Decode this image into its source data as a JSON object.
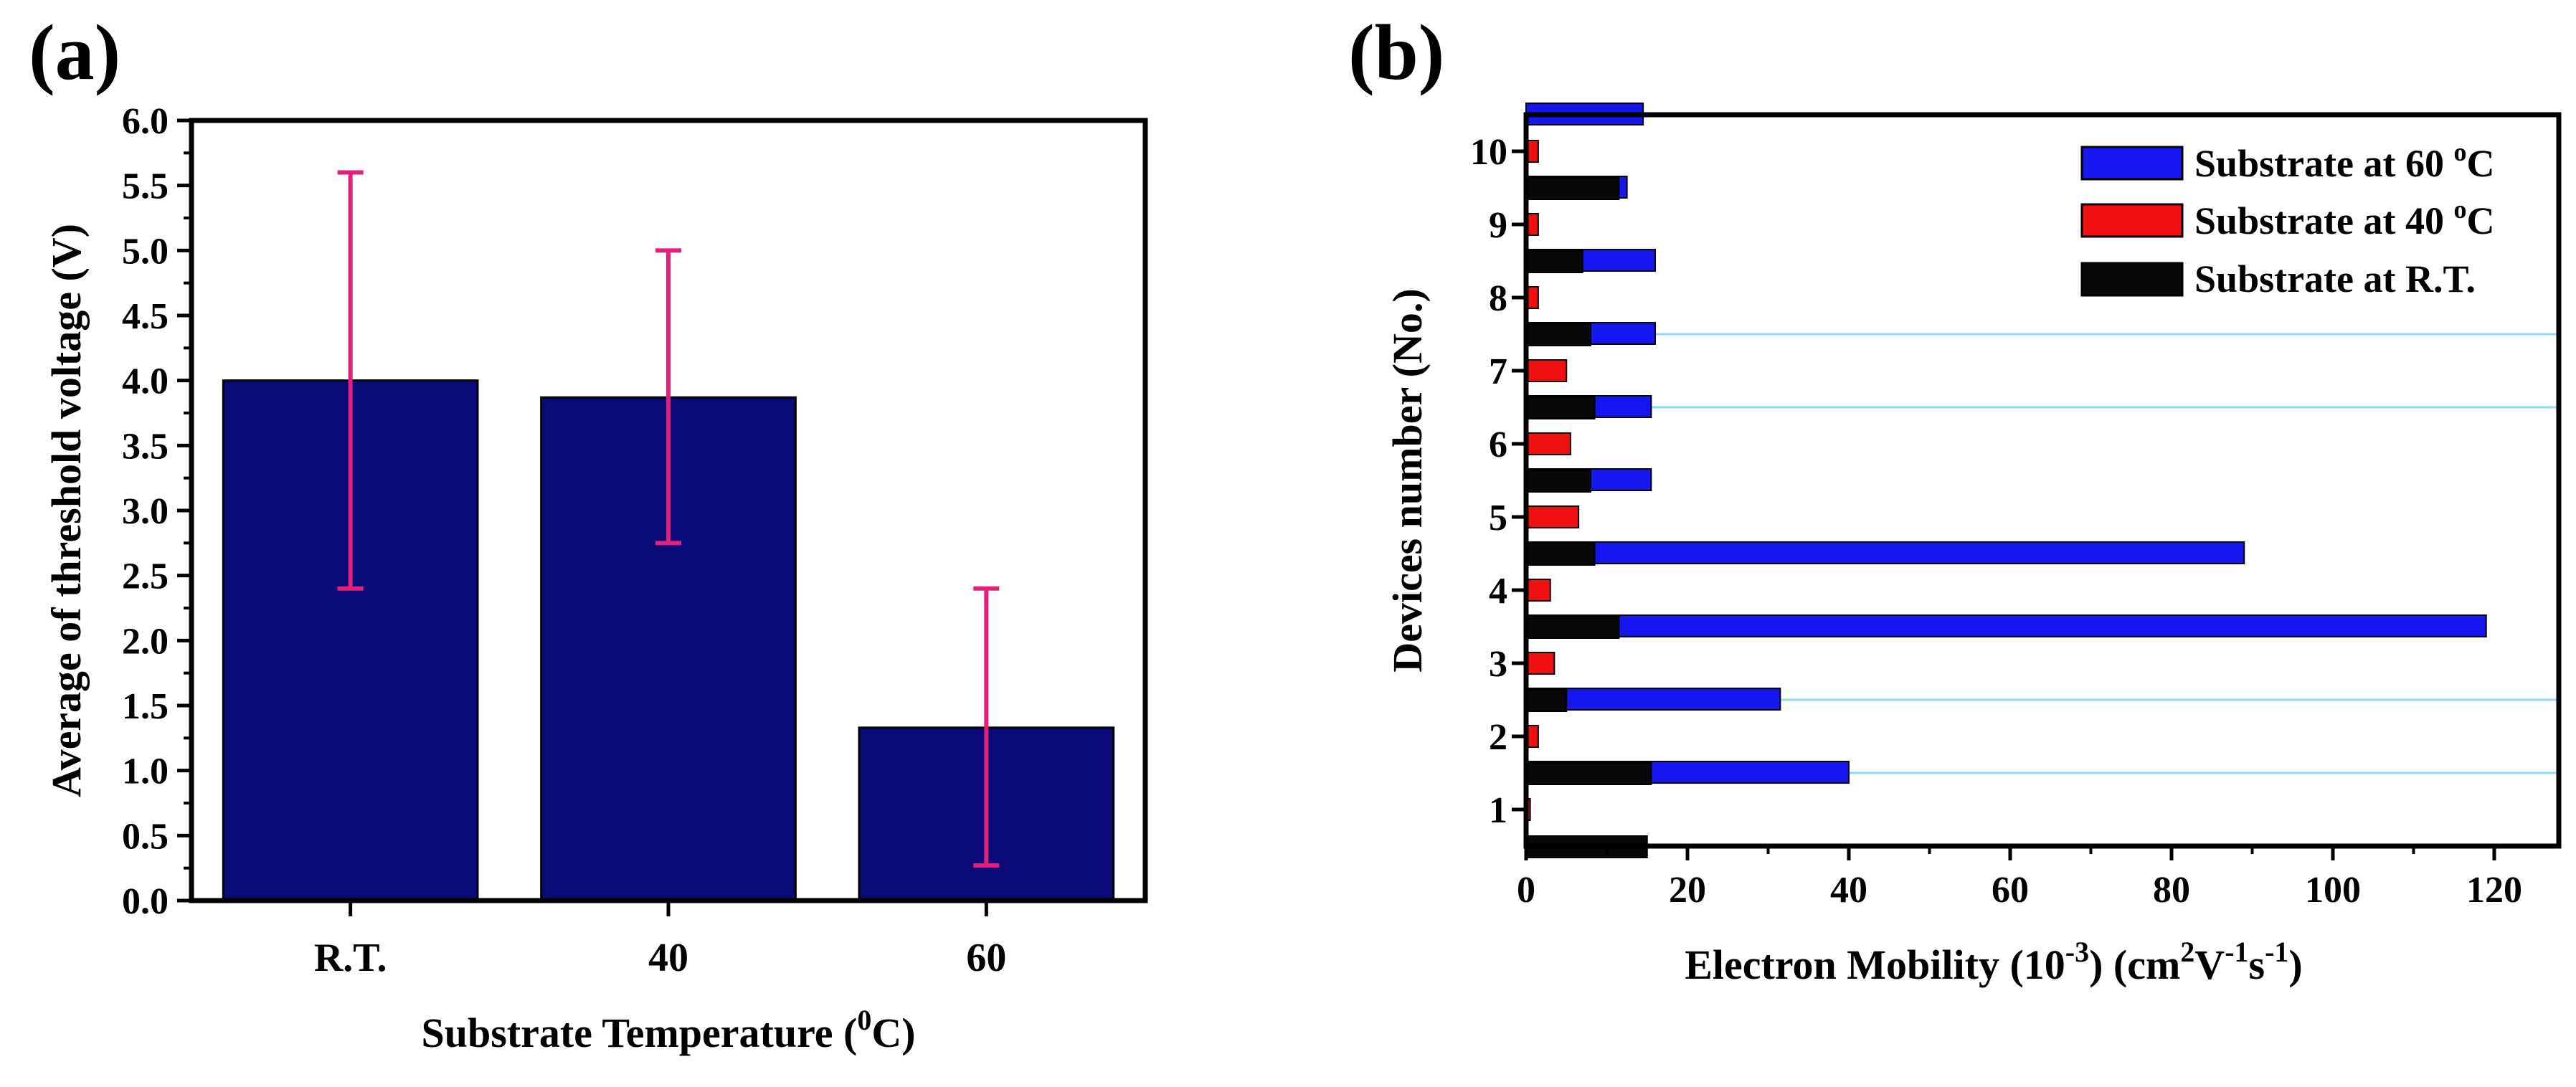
{
  "panels": {
    "a_label": "(a)",
    "b_label": "(b)"
  },
  "colors": {
    "bar_navy": "#0a0a78",
    "error_magenta": "#e0207a",
    "series_blue": "#1616f0",
    "series_red": "#f01010",
    "series_black": "#080808",
    "ref_line": "#8fdcec"
  },
  "chart_data": [
    {
      "id": "a",
      "type": "bar",
      "categories": [
        "R.T.",
        "40",
        "60"
      ],
      "values": [
        4.0,
        3.87,
        1.33
      ],
      "error_low": [
        2.4,
        2.75,
        0.27
      ],
      "error_high": [
        5.6,
        5.0,
        2.4
      ],
      "ylim": [
        0.0,
        6.0
      ],
      "yticks": [
        "0.0",
        "0.5",
        "1.0",
        "1.5",
        "2.0",
        "2.5",
        "3.0",
        "3.5",
        "4.0",
        "4.5",
        "5.0",
        "5.5",
        "6.0"
      ],
      "ylabel": "Average of threshold voltage (V)",
      "xlabel": "Substrate Temperature (",
      "xlabel_sup": "0",
      "xlabel_end": "C)",
      "grid": false
    },
    {
      "id": "b",
      "type": "bar",
      "orientation": "horizontal",
      "categories": [
        "1",
        "2",
        "3",
        "4",
        "5",
        "6",
        "7",
        "8",
        "9",
        "10"
      ],
      "series": [
        {
          "name": "Substrate at 60 ",
          "sup": "o",
          "unit": "C",
          "values": [
            40,
            31.5,
            119,
            89,
            15.5,
            15.5,
            16,
            16,
            12.5,
            14.5
          ]
        },
        {
          "name": "Substrate at 40 ",
          "sup": "o",
          "unit": "C",
          "values": [
            0.5,
            1.5,
            3.5,
            3.0,
            6.5,
            5.5,
            5.0,
            1.5,
            1.5,
            1.5
          ]
        },
        {
          "name": "Substrate at R.T.",
          "sup": "",
          "unit": "",
          "values": [
            15,
            15.5,
            5.0,
            11.5,
            8.5,
            8.0,
            8.5,
            8.0,
            7.0,
            11.5
          ]
        }
      ],
      "xlim": [
        0,
        128
      ],
      "xticks": [
        "0",
        "20",
        "40",
        "60",
        "80",
        "100",
        "120"
      ],
      "xlabel_parts": [
        "Electron Mobility (10",
        "-3",
        ") (cm",
        "2",
        "V",
        "-1",
        "s",
        "-1",
        ")"
      ],
      "ylabel": "Devices number (No.)",
      "ref_lines_between": [
        1.5,
        2.5,
        6.5,
        7.5
      ],
      "legend_position": "top-right",
      "grid": false
    }
  ]
}
